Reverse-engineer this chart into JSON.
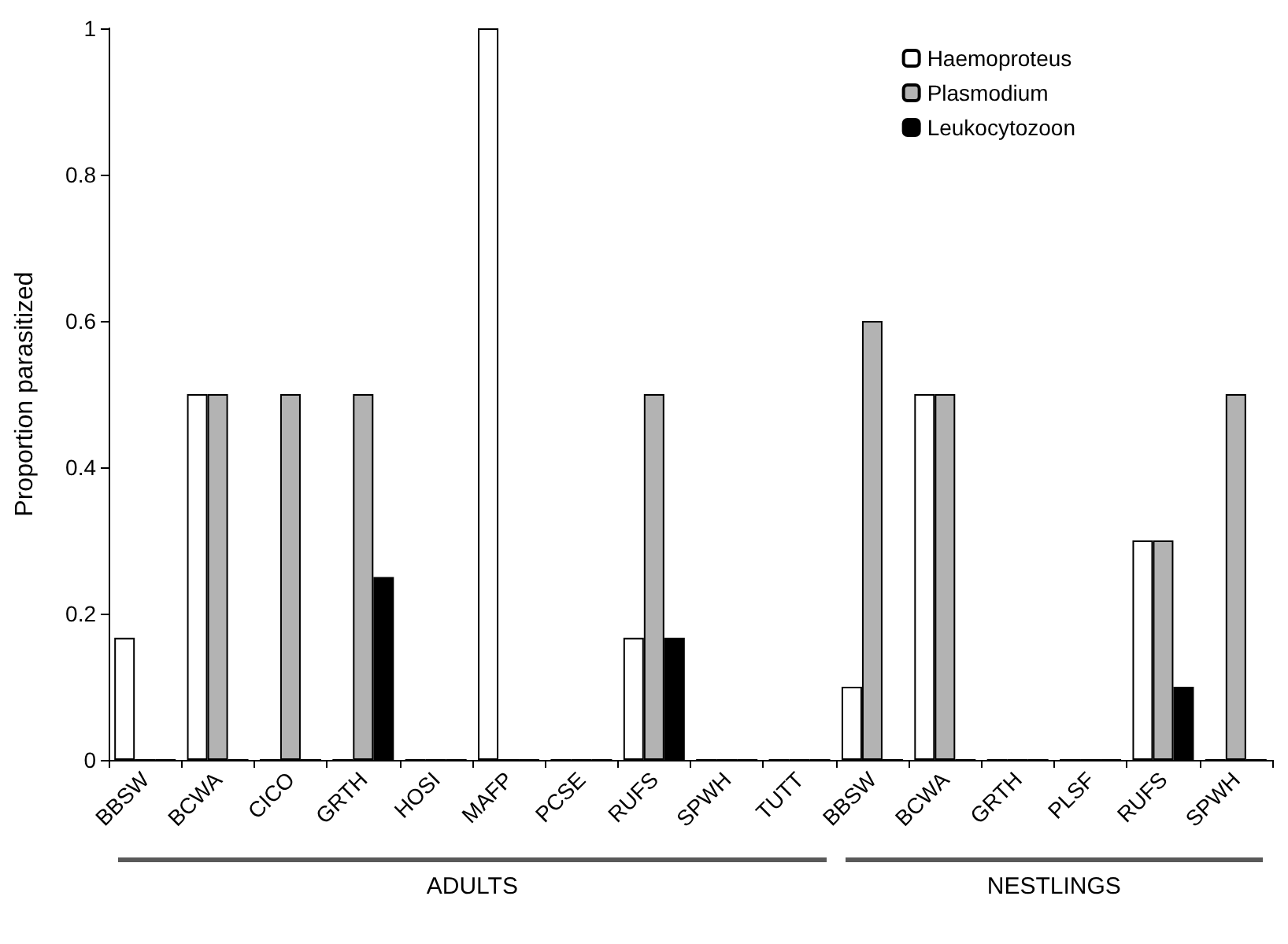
{
  "chart_data": {
    "type": "bar",
    "ylabel": "Proportion parasitized",
    "categories": [
      "BBSW",
      "BCWA",
      "CICO",
      "GRTH",
      "HOSI",
      "MAFP",
      "PCSE",
      "RUFS",
      "SPWH",
      "TUTT",
      "BBSW",
      "BCWA",
      "GRTH",
      "PLSF",
      "RUFS",
      "SPWH"
    ],
    "series": [
      {
        "name": "Haemoproteus",
        "color": "#ffffff",
        "values": [
          0.167,
          0.5,
          0,
          0,
          0,
          1,
          0,
          0.167,
          0,
          0,
          0.1,
          0.5,
          0,
          0,
          0.3,
          0
        ]
      },
      {
        "name": "Plasmodium",
        "color": "#b3b3b3",
        "values": [
          0,
          0.5,
          0.5,
          0.5,
          0,
          0,
          0,
          0.5,
          0,
          0,
          0.6,
          0.5,
          0,
          0,
          0.3,
          0.5
        ]
      },
      {
        "name": "Leukocytozoon",
        "color": "#000000",
        "values": [
          0,
          0,
          0,
          0.25,
          0,
          0,
          0,
          0.167,
          0,
          0,
          0,
          0,
          0,
          0,
          0.1,
          0
        ]
      }
    ],
    "ylim": [
      0,
      1
    ],
    "yticks": [
      0,
      0.2,
      0.4,
      0.6,
      0.8,
      1
    ],
    "grid": false,
    "legend": "top right",
    "annotations": [
      "ADULTS",
      "NESTLINGS"
    ]
  }
}
